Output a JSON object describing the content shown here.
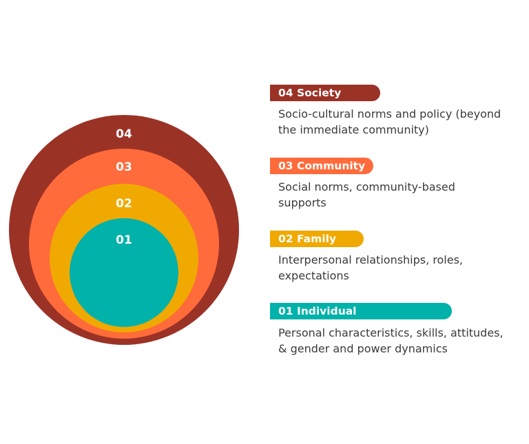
{
  "colors": {
    "society": "#9b3226",
    "community": "#ff6b3b",
    "family": "#f0a900",
    "individual": "#00b2aa",
    "text": "#3a3a3a"
  },
  "rings": [
    {
      "label": "04"
    },
    {
      "label": "03"
    },
    {
      "label": "02"
    },
    {
      "label": "01"
    }
  ],
  "levels": [
    {
      "title": "04 Society",
      "description_lines": [
        "Socio-cultural norms and policy (beyond",
        "the immediate community)"
      ]
    },
    {
      "title": "03 Community",
      "description_lines": [
        "Social norms, community-based",
        "supports"
      ]
    },
    {
      "title": "02 Family",
      "description_lines": [
        "Interpersonal relationships, roles,",
        "expectations"
      ]
    },
    {
      "title": "01 Individual",
      "description_lines": [
        "Personal characteristics, skills, attitudes,",
        "& gender and power dynamics"
      ]
    }
  ]
}
